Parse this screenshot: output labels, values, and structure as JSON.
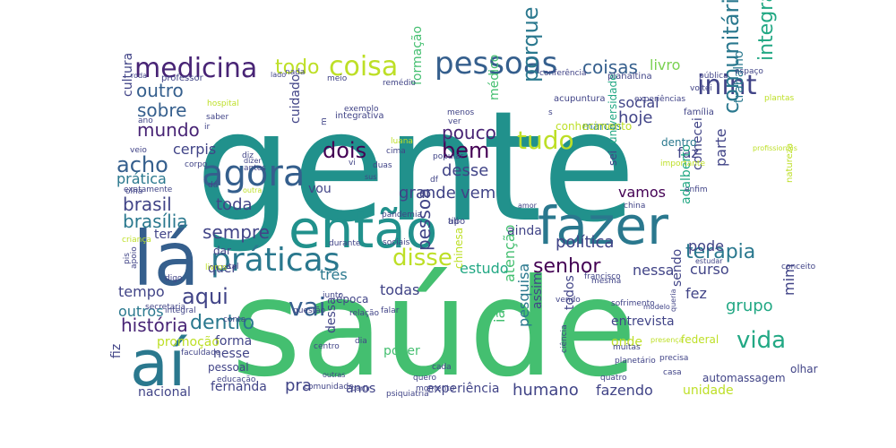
{
  "palette": [
    "#440154",
    "#482475",
    "#414487",
    "#355f8d",
    "#2a788e",
    "#21918c",
    "#22a884",
    "#44bf70",
    "#7ad151",
    "#bddf26",
    "#fde725"
  ],
  "words": [
    {
      "text": "gente",
      "color": "#21918c"
    },
    {
      "text": "saúde",
      "color": "#44bf70"
    },
    {
      "text": "então",
      "color": "#21918c"
    },
    {
      "text": "lá",
      "color": "#355f8d"
    },
    {
      "text": "aí",
      "color": "#2a788e"
    },
    {
      "text": "fazer",
      "color": "#2a788e"
    },
    {
      "text": "práticas",
      "color": "#2a788e"
    },
    {
      "text": "agora",
      "color": "#355f8d"
    },
    {
      "text": "pessoas",
      "color": "#355f8d"
    },
    {
      "text": "medicina",
      "color": "#482475"
    },
    {
      "text": "coisa",
      "color": "#bddf26"
    },
    {
      "text": "porque",
      "color": "#2a788e"
    },
    {
      "text": "integrativas",
      "color": "#22a884"
    },
    {
      "text": "inint",
      "color": "#414487"
    },
    {
      "text": "coisas",
      "color": "#355f8d"
    },
    {
      "text": "livro",
      "color": "#7ad151"
    },
    {
      "text": "comunitária",
      "color": "#2a788e"
    },
    {
      "text": "tudo",
      "color": "#bddf26"
    },
    {
      "text": "disse",
      "color": "#bddf26"
    },
    {
      "text": "vai",
      "color": "#355f8d"
    },
    {
      "text": "senhor",
      "color": "#440154"
    },
    {
      "text": "política",
      "color": "#414487"
    },
    {
      "text": "terapia",
      "color": "#2a788e"
    },
    {
      "text": "vida",
      "color": "#22a884"
    },
    {
      "text": "aqui",
      "color": "#414487"
    },
    {
      "text": "dentro",
      "color": "#2a788e"
    },
    {
      "text": "acho",
      "color": "#355f8d"
    },
    {
      "text": "mundo",
      "color": "#482475"
    },
    {
      "text": "sobre",
      "color": "#355f8d"
    },
    {
      "text": "outro",
      "color": "#355f8d"
    },
    {
      "text": "dois",
      "color": "#440154"
    },
    {
      "text": "bem",
      "color": "#440154"
    },
    {
      "text": "pouco",
      "color": "#482475"
    },
    {
      "text": "desse",
      "color": "#414487"
    },
    {
      "text": "todo",
      "color": "#bddf26"
    },
    {
      "text": "social",
      "color": "#414487"
    },
    {
      "text": "hoje",
      "color": "#414487"
    },
    {
      "text": "brasil",
      "color": "#414487"
    },
    {
      "text": "brasília",
      "color": "#2a788e"
    },
    {
      "text": "sempre",
      "color": "#414487"
    },
    {
      "text": "toda",
      "color": "#414487"
    },
    {
      "text": "prática",
      "color": "#2a788e"
    },
    {
      "text": "cerpis",
      "color": "#414487"
    },
    {
      "text": "cultura",
      "color": "#414487"
    },
    {
      "text": "cuidado",
      "color": "#414487"
    },
    {
      "text": "formação",
      "color": "#44bf70"
    },
    {
      "text": "médico",
      "color": "#44bf70"
    },
    {
      "text": "universidade",
      "color": "#22a884"
    },
    {
      "text": "sei",
      "color": "#414487"
    },
    {
      "text": "faz",
      "color": "#414487"
    },
    {
      "text": "parte",
      "color": "#414487"
    },
    {
      "text": "vamos",
      "color": "#440154"
    },
    {
      "text": "trabalho",
      "color": "#2a788e"
    },
    {
      "text": "comecei",
      "color": "#414487"
    },
    {
      "text": "adalberto",
      "color": "#22a884"
    },
    {
      "text": "vem",
      "color": "#414487"
    },
    {
      "text": "grande",
      "color": "#414487"
    },
    {
      "text": "vou",
      "color": "#414487"
    },
    {
      "text": "pessoa",
      "color": "#414487"
    },
    {
      "text": "pesquisa",
      "color": "#2a788e"
    },
    {
      "text": "atenção",
      "color": "#44bf70"
    },
    {
      "text": "ia",
      "color": "#44bf70"
    },
    {
      "text": "estudo",
      "color": "#22a884"
    },
    {
      "text": "nessa",
      "color": "#414487"
    },
    {
      "text": "fez",
      "color": "#414487"
    },
    {
      "text": "curso",
      "color": "#414487"
    },
    {
      "text": "pode",
      "color": "#414487"
    },
    {
      "text": "sendo",
      "color": "#414487"
    },
    {
      "text": "grupo",
      "color": "#22a884"
    },
    {
      "text": "mim",
      "color": "#414487"
    },
    {
      "text": "história",
      "color": "#482475"
    },
    {
      "text": "ter",
      "color": "#414487"
    },
    {
      "text": "dar",
      "color": "#414487"
    },
    {
      "text": "quer",
      "color": "#414487"
    },
    {
      "text": "tempo",
      "color": "#414487"
    },
    {
      "text": "outros",
      "color": "#2a788e"
    },
    {
      "text": "três",
      "color": "#2a788e"
    },
    {
      "text": "todas",
      "color": "#414487"
    },
    {
      "text": "época",
      "color": "#414487"
    },
    {
      "text": "forma",
      "color": "#414487"
    },
    {
      "text": "nesse",
      "color": "#414487"
    },
    {
      "text": "promoção",
      "color": "#bddf26"
    },
    {
      "text": "fiz",
      "color": "#414487"
    },
    {
      "text": "dessa",
      "color": "#414487"
    },
    {
      "text": "poder",
      "color": "#44bf70"
    },
    {
      "text": "pra",
      "color": "#414487"
    },
    {
      "text": "anos",
      "color": "#414487"
    },
    {
      "text": "experiência",
      "color": "#414487"
    },
    {
      "text": "humano",
      "color": "#414487"
    },
    {
      "text": "fazendo",
      "color": "#414487"
    },
    {
      "text": "unidade",
      "color": "#bddf26"
    },
    {
      "text": "automassagem",
      "color": "#414487"
    },
    {
      "text": "entrevista",
      "color": "#414487"
    },
    {
      "text": "onde",
      "color": "#bddf26"
    },
    {
      "text": "todos",
      "color": "#414487"
    },
    {
      "text": "assim",
      "color": "#414487"
    },
    {
      "text": "chinesa",
      "color": "#bddf26"
    },
    {
      "text": "nacional",
      "color": "#414487"
    },
    {
      "text": "fernanda",
      "color": "#414487"
    },
    {
      "text": "pessoal",
      "color": "#414487"
    },
    {
      "text": "ainda",
      "color": "#414487"
    },
    {
      "text": "dentro",
      "color": "#2a788e"
    },
    {
      "text": "marcos",
      "color": "#2a788e"
    },
    {
      "text": "conhecimento",
      "color": "#bddf26"
    },
    {
      "text": "acupuntura",
      "color": "#414487"
    },
    {
      "text": "planaltina",
      "color": "#414487"
    },
    {
      "text": "professor",
      "color": "#414487"
    },
    {
      "text": "família",
      "color": "#414487"
    },
    {
      "text": "integrativa",
      "color": "#414487"
    },
    {
      "text": "exemplo",
      "color": "#414487"
    },
    {
      "text": "hospital",
      "color": "#bddf26"
    },
    {
      "text": "saber",
      "color": "#414487"
    },
    {
      "text": "ir",
      "color": "#414487"
    },
    {
      "text": "meio",
      "color": "#414487"
    },
    {
      "text": "nada",
      "color": "#414487"
    },
    {
      "text": "menos",
      "color": "#414487"
    },
    {
      "text": "ver",
      "color": "#414487"
    },
    {
      "text": "luana",
      "color": "#bddf26"
    },
    {
      "text": "popular",
      "color": "#414487"
    },
    {
      "text": "vi",
      "color": "#414487"
    },
    {
      "text": "duas",
      "color": "#414487"
    },
    {
      "text": "corpo",
      "color": "#414487"
    },
    {
      "text": "antes",
      "color": "#414487"
    },
    {
      "text": "dizer",
      "color": "#414487"
    },
    {
      "text": "veio",
      "color": "#414487"
    },
    {
      "text": "outra",
      "color": "#bddf26"
    },
    {
      "text": "df",
      "color": "#414487"
    },
    {
      "text": "importante",
      "color": "#bddf26"
    },
    {
      "text": "pandemia",
      "color": "#414487"
    },
    {
      "text": "china",
      "color": "#414487"
    },
    {
      "text": "enfim",
      "color": "#414487"
    },
    {
      "text": "conta",
      "color": "#414487"
    },
    {
      "text": "tal",
      "color": "#414487"
    },
    {
      "text": "durante",
      "color": "#414487"
    },
    {
      "text": "sociais",
      "color": "#414487"
    },
    {
      "text": "mesma",
      "color": "#414487"
    },
    {
      "text": "francisco",
      "color": "#414487"
    },
    {
      "text": "sofrimento",
      "color": "#414487"
    },
    {
      "text": "queria",
      "color": "#414487"
    },
    {
      "text": "junto",
      "color": "#414487"
    },
    {
      "text": "integral",
      "color": "#414487"
    },
    {
      "text": "secretaria",
      "color": "#414487"
    },
    {
      "text": "questão",
      "color": "#414487"
    },
    {
      "text": "relação",
      "color": "#414487"
    },
    {
      "text": "falar",
      "color": "#414487"
    },
    {
      "text": "dia",
      "color": "#414487"
    },
    {
      "text": "centro",
      "color": "#414487"
    },
    {
      "text": "quero",
      "color": "#414487"
    },
    {
      "text": "quatro",
      "color": "#414487"
    },
    {
      "text": "ciência",
      "color": "#414487"
    },
    {
      "text": "muitas",
      "color": "#414487"
    },
    {
      "text": "planetário",
      "color": "#414487"
    },
    {
      "text": "precisa",
      "color": "#414487"
    },
    {
      "text": "casa",
      "color": "#414487"
    },
    {
      "text": "cada",
      "color": "#414487"
    },
    {
      "text": "outras",
      "color": "#414487"
    },
    {
      "text": "educação",
      "color": "#414487"
    },
    {
      "text": "faculdade",
      "color": "#414487"
    },
    {
      "text": "olhar",
      "color": "#414487"
    },
    {
      "text": "federal",
      "color": "#bddf26"
    },
    {
      "text": "s",
      "color": "#414487"
    },
    {
      "text": "m",
      "color": "#414487"
    },
    {
      "text": "ano",
      "color": "#414487"
    },
    {
      "text": "exatamente",
      "color": "#414487"
    },
    {
      "text": "criança",
      "color": "#bddf26"
    },
    {
      "text": "comunidade",
      "color": "#414487"
    },
    {
      "text": "partir",
      "color": "#414487"
    },
    {
      "text": "momento",
      "color": "#414487"
    },
    {
      "text": "psiquiatria",
      "color": "#414487"
    },
    {
      "text": "sus",
      "color": "#414487"
    },
    {
      "text": "pis",
      "color": "#414487"
    },
    {
      "text": "apoio",
      "color": "#414487"
    },
    {
      "text": "natureza",
      "color": "#bddf26"
    },
    {
      "text": "plantas",
      "color": "#bddf26"
    },
    {
      "text": "espaço",
      "color": "#414487"
    },
    {
      "text": "profissionais",
      "color": "#bddf26"
    },
    {
      "text": "conferência",
      "color": "#414487"
    },
    {
      "text": "pública",
      "color": "#414487"
    },
    {
      "text": "remédio",
      "color": "#414487"
    },
    {
      "text": "roda",
      "color": "#414487"
    },
    {
      "text": "lado",
      "color": "#414487"
    },
    {
      "text": "conceito",
      "color": "#414487"
    },
    {
      "text": "vendo",
      "color": "#414487"
    },
    {
      "text": "presença",
      "color": "#bddf26"
    },
    {
      "text": "estudar",
      "color": "#414487"
    },
    {
      "text": "amor",
      "color": "#414487"
    },
    {
      "text": "diz",
      "color": "#414487"
    },
    {
      "text": "dá",
      "color": "#414487"
    },
    {
      "text": "cima",
      "color": "#414487"
    },
    {
      "text": "olha",
      "color": "#414487"
    },
    {
      "text": "digo",
      "color": "#414487"
    },
    {
      "text": "livros",
      "color": "#bddf26"
    },
    {
      "text": "modelo",
      "color": "#414487"
    },
    {
      "text": "voltei",
      "color": "#414487"
    },
    {
      "text": "experiências",
      "color": "#414487"
    },
    {
      "text": "ali",
      "color": "#414487"
    },
    {
      "text": "tipo",
      "color": "#414487"
    }
  ]
}
